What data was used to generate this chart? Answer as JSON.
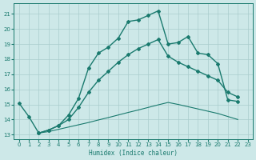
{
  "xlabel": "Humidex (Indice chaleur)",
  "xlim": [
    -0.5,
    23.5
  ],
  "ylim": [
    12.7,
    21.7
  ],
  "yticks": [
    13,
    14,
    15,
    16,
    17,
    18,
    19,
    20,
    21
  ],
  "xticks": [
    0,
    1,
    2,
    3,
    4,
    5,
    6,
    7,
    8,
    9,
    10,
    11,
    12,
    13,
    14,
    15,
    16,
    17,
    18,
    19,
    20,
    21,
    22,
    23
  ],
  "bg_color": "#cde8e8",
  "line_color": "#1a7a6e",
  "grid_color": "#aacccc",
  "lines": [
    {
      "x": [
        0,
        1,
        2,
        3,
        4,
        5,
        6,
        7,
        8,
        9,
        10,
        11,
        12,
        13,
        14,
        15,
        16,
        17,
        18,
        19,
        20,
        21,
        22
      ],
      "y": [
        15.1,
        14.2,
        13.1,
        13.3,
        13.6,
        14.3,
        15.4,
        17.4,
        18.4,
        18.8,
        19.4,
        20.5,
        20.6,
        20.9,
        21.2,
        19.0,
        19.1,
        19.5,
        18.4,
        18.3,
        17.7,
        15.3,
        15.2
      ],
      "marker": "D",
      "markersize": 2.0,
      "linewidth": 1.0
    },
    {
      "x": [
        2,
        3,
        4,
        5,
        6,
        7,
        8,
        9,
        10,
        11,
        12,
        13,
        14,
        15,
        16,
        17,
        18,
        19,
        20,
        21,
        22
      ],
      "y": [
        13.1,
        13.3,
        13.6,
        14.0,
        14.8,
        15.8,
        16.6,
        17.2,
        17.8,
        18.3,
        18.7,
        19.0,
        19.3,
        18.2,
        17.8,
        17.5,
        17.2,
        16.9,
        16.6,
        15.8,
        15.5
      ],
      "marker": "D",
      "markersize": 2.0,
      "linewidth": 1.0
    },
    {
      "x": [
        2,
        3,
        4,
        5,
        6,
        7,
        8,
        9,
        10,
        11,
        12,
        13,
        14,
        15,
        16,
        17,
        18,
        19,
        20,
        21,
        22
      ],
      "y": [
        13.1,
        13.2,
        13.35,
        13.5,
        13.65,
        13.8,
        13.97,
        14.13,
        14.3,
        14.47,
        14.63,
        14.8,
        14.97,
        15.13,
        15.0,
        14.85,
        14.7,
        14.55,
        14.4,
        14.2,
        14.0
      ],
      "marker": null,
      "markersize": 0,
      "linewidth": 0.8,
      "linestyle": "-"
    }
  ]
}
